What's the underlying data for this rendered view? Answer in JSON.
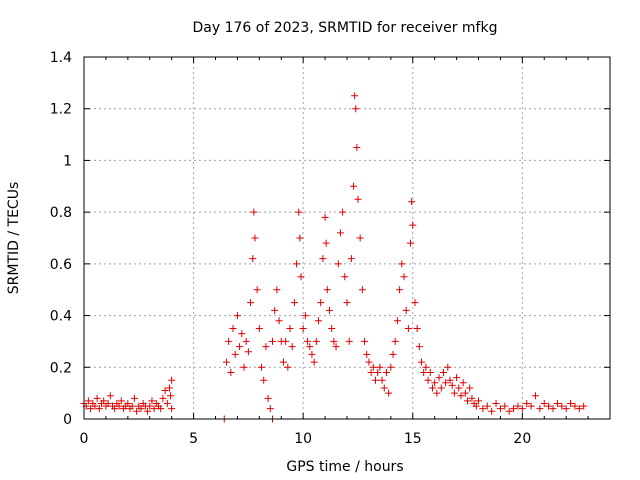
{
  "chart_data": {
    "type": "scatter",
    "title": "Day 176 of 2023, SRMTID for receiver mfkg",
    "xlabel": "GPS time / hours",
    "ylabel": "SRMTID / TECUs",
    "xlim": [
      0,
      24
    ],
    "ylim": [
      0,
      1.4
    ],
    "xticks": [
      0,
      5,
      10,
      15,
      20
    ],
    "yticks": [
      0,
      0.2,
      0.4,
      0.6,
      0.8,
      1.0,
      1.2,
      1.4
    ],
    "xtick_labels": [
      "0",
      "5",
      "10",
      "15",
      "20"
    ],
    "ytick_labels": [
      "0",
      "0.2",
      "0.4",
      "0.6",
      "0.8",
      "1",
      "1.2",
      "1.4"
    ],
    "grid": true,
    "marker": "+",
    "color": "#e00000",
    "series": [
      {
        "name": "SRMTID",
        "points": [
          [
            0.0,
            0.06
          ],
          [
            0.1,
            0.05
          ],
          [
            0.2,
            0.07
          ],
          [
            0.3,
            0.04
          ],
          [
            0.4,
            0.06
          ],
          [
            0.5,
            0.05
          ],
          [
            0.6,
            0.08
          ],
          [
            0.7,
            0.04
          ],
          [
            0.8,
            0.06
          ],
          [
            0.9,
            0.07
          ],
          [
            1.0,
            0.05
          ],
          [
            1.1,
            0.06
          ],
          [
            1.2,
            0.09
          ],
          [
            1.3,
            0.05
          ],
          [
            1.4,
            0.04
          ],
          [
            1.5,
            0.06
          ],
          [
            1.6,
            0.05
          ],
          [
            1.7,
            0.07
          ],
          [
            1.8,
            0.04
          ],
          [
            1.9,
            0.05
          ],
          [
            2.0,
            0.06
          ],
          [
            2.1,
            0.04
          ],
          [
            2.2,
            0.05
          ],
          [
            2.3,
            0.08
          ],
          [
            2.4,
            0.03
          ],
          [
            2.5,
            0.05
          ],
          [
            2.6,
            0.04
          ],
          [
            2.7,
            0.06
          ],
          [
            2.8,
            0.05
          ],
          [
            2.9,
            0.03
          ],
          [
            3.0,
            0.05
          ],
          [
            3.1,
            0.07
          ],
          [
            3.2,
            0.04
          ],
          [
            3.3,
            0.06
          ],
          [
            3.4,
            0.05
          ],
          [
            3.5,
            0.04
          ],
          [
            3.6,
            0.08
          ],
          [
            3.7,
            0.11
          ],
          [
            3.8,
            0.06
          ],
          [
            3.9,
            0.12
          ],
          [
            4.0,
            0.15
          ],
          [
            4.0,
            0.04
          ],
          [
            3.95,
            0.09
          ],
          [
            6.4,
            0.0
          ],
          [
            8.6,
            0.0
          ],
          [
            6.5,
            0.22
          ],
          [
            6.6,
            0.3
          ],
          [
            6.7,
            0.18
          ],
          [
            6.8,
            0.35
          ],
          [
            6.9,
            0.25
          ],
          [
            7.0,
            0.4
          ],
          [
            7.1,
            0.28
          ],
          [
            7.2,
            0.33
          ],
          [
            7.3,
            0.2
          ],
          [
            7.4,
            0.3
          ],
          [
            7.5,
            0.26
          ],
          [
            7.6,
            0.45
          ],
          [
            7.7,
            0.62
          ],
          [
            7.75,
            0.8
          ],
          [
            7.8,
            0.7
          ],
          [
            7.9,
            0.5
          ],
          [
            8.0,
            0.35
          ],
          [
            8.1,
            0.2
          ],
          [
            8.2,
            0.15
          ],
          [
            8.3,
            0.28
          ],
          [
            8.4,
            0.08
          ],
          [
            8.5,
            0.04
          ],
          [
            8.6,
            0.3
          ],
          [
            8.7,
            0.42
          ],
          [
            8.8,
            0.5
          ],
          [
            8.9,
            0.38
          ],
          [
            9.0,
            0.3
          ],
          [
            9.1,
            0.22
          ],
          [
            9.2,
            0.3
          ],
          [
            9.3,
            0.2
          ],
          [
            9.4,
            0.35
          ],
          [
            9.5,
            0.28
          ],
          [
            9.6,
            0.45
          ],
          [
            9.7,
            0.6
          ],
          [
            9.8,
            0.8
          ],
          [
            9.85,
            0.7
          ],
          [
            9.9,
            0.55
          ],
          [
            10.0,
            0.35
          ],
          [
            10.1,
            0.4
          ],
          [
            10.2,
            0.3
          ],
          [
            10.3,
            0.28
          ],
          [
            10.4,
            0.25
          ],
          [
            10.5,
            0.22
          ],
          [
            10.6,
            0.3
          ],
          [
            10.7,
            0.38
          ],
          [
            10.8,
            0.45
          ],
          [
            10.9,
            0.62
          ],
          [
            11.0,
            0.78
          ],
          [
            11.05,
            0.68
          ],
          [
            11.1,
            0.5
          ],
          [
            11.2,
            0.42
          ],
          [
            11.3,
            0.35
          ],
          [
            11.4,
            0.3
          ],
          [
            11.5,
            0.28
          ],
          [
            11.6,
            0.6
          ],
          [
            11.7,
            0.72
          ],
          [
            11.8,
            0.8
          ],
          [
            11.9,
            0.55
          ],
          [
            12.0,
            0.45
          ],
          [
            12.1,
            0.3
          ],
          [
            12.2,
            0.62
          ],
          [
            12.3,
            0.9
          ],
          [
            12.35,
            1.25
          ],
          [
            12.4,
            1.2
          ],
          [
            12.45,
            1.05
          ],
          [
            12.5,
            0.85
          ],
          [
            12.6,
            0.7
          ],
          [
            12.7,
            0.5
          ],
          [
            12.8,
            0.3
          ],
          [
            12.9,
            0.25
          ],
          [
            13.0,
            0.22
          ],
          [
            13.1,
            0.18
          ],
          [
            13.2,
            0.2
          ],
          [
            13.3,
            0.15
          ],
          [
            13.4,
            0.18
          ],
          [
            13.5,
            0.2
          ],
          [
            13.6,
            0.15
          ],
          [
            13.7,
            0.12
          ],
          [
            13.8,
            0.18
          ],
          [
            13.9,
            0.1
          ],
          [
            14.0,
            0.2
          ],
          [
            14.1,
            0.25
          ],
          [
            14.2,
            0.3
          ],
          [
            14.3,
            0.38
          ],
          [
            14.4,
            0.5
          ],
          [
            14.5,
            0.6
          ],
          [
            14.6,
            0.55
          ],
          [
            14.7,
            0.42
          ],
          [
            14.8,
            0.35
          ],
          [
            14.9,
            0.68
          ],
          [
            14.95,
            0.84
          ],
          [
            15.0,
            0.75
          ],
          [
            15.1,
            0.45
          ],
          [
            15.2,
            0.35
          ],
          [
            15.3,
            0.28
          ],
          [
            15.4,
            0.22
          ],
          [
            15.5,
            0.18
          ],
          [
            15.6,
            0.2
          ],
          [
            15.7,
            0.15
          ],
          [
            15.8,
            0.18
          ],
          [
            15.9,
            0.12
          ],
          [
            16.0,
            0.14
          ],
          [
            16.1,
            0.1
          ],
          [
            16.2,
            0.16
          ],
          [
            16.3,
            0.12
          ],
          [
            16.4,
            0.18
          ],
          [
            16.5,
            0.14
          ],
          [
            16.6,
            0.2
          ],
          [
            16.7,
            0.15
          ],
          [
            16.8,
            0.13
          ],
          [
            16.9,
            0.1
          ],
          [
            17.0,
            0.16
          ],
          [
            17.1,
            0.12
          ],
          [
            17.2,
            0.09
          ],
          [
            17.3,
            0.14
          ],
          [
            17.4,
            0.1
          ],
          [
            17.5,
            0.07
          ],
          [
            17.6,
            0.12
          ],
          [
            17.7,
            0.08
          ],
          [
            17.8,
            0.06
          ],
          [
            17.9,
            0.05
          ],
          [
            18.0,
            0.07
          ],
          [
            18.2,
            0.04
          ],
          [
            18.4,
            0.05
          ],
          [
            18.6,
            0.03
          ],
          [
            18.8,
            0.06
          ],
          [
            19.0,
            0.04
          ],
          [
            19.2,
            0.05
          ],
          [
            19.4,
            0.03
          ],
          [
            19.6,
            0.04
          ],
          [
            19.8,
            0.05
          ],
          [
            20.0,
            0.04
          ],
          [
            20.2,
            0.06
          ],
          [
            20.4,
            0.05
          ],
          [
            20.6,
            0.09
          ],
          [
            20.8,
            0.04
          ],
          [
            21.0,
            0.06
          ],
          [
            21.2,
            0.05
          ],
          [
            21.4,
            0.04
          ],
          [
            21.6,
            0.06
          ],
          [
            21.8,
            0.05
          ],
          [
            22.0,
            0.04
          ],
          [
            22.2,
            0.06
          ],
          [
            22.4,
            0.05
          ],
          [
            22.6,
            0.04
          ],
          [
            22.8,
            0.05
          ]
        ]
      }
    ]
  }
}
